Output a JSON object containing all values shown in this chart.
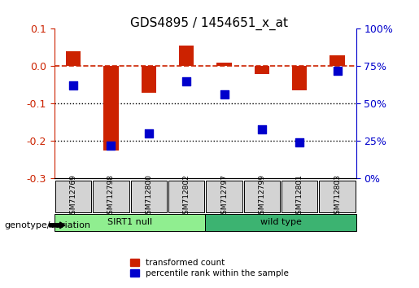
{
  "title": "GDS4895 / 1454651_x_at",
  "samples": [
    "GSM712769",
    "GSM712798",
    "GSM712800",
    "GSM712802",
    "GSM712797",
    "GSM712799",
    "GSM712801",
    "GSM712803"
  ],
  "red_bars": [
    0.04,
    -0.225,
    -0.07,
    0.055,
    0.01,
    -0.02,
    -0.065,
    0.03
  ],
  "blue_dots": [
    -0.075,
    -0.175,
    -0.14,
    -0.06,
    -0.09,
    -0.13,
    -0.195,
    -0.015
  ],
  "blue_dots_pct": [
    62,
    22,
    30,
    65,
    56,
    33,
    24,
    72
  ],
  "groups": [
    {
      "label": "SIRT1 null",
      "start": 0,
      "end": 4,
      "color": "#90EE90"
    },
    {
      "label": "wild type",
      "start": 4,
      "end": 8,
      "color": "#32CD32"
    }
  ],
  "ylim_left": [
    -0.3,
    0.1
  ],
  "ylim_right": [
    0,
    100
  ],
  "yticks_left": [
    -0.3,
    -0.2,
    -0.1,
    0.0,
    0.1
  ],
  "yticks_right": [
    0,
    25,
    50,
    75,
    100
  ],
  "ytick_right_labels": [
    "0%",
    "25%",
    "50%",
    "75%",
    "100%"
  ],
  "bar_color": "#CC2200",
  "dot_color": "#0000CC",
  "hline_color": "#CC2200",
  "dotted_line_color": "#000000",
  "dotted_lines": [
    -0.1,
    -0.2
  ],
  "legend_red_label": "transformed count",
  "legend_blue_label": "percentile rank within the sample",
  "genotype_label": "genotype/variation",
  "group_bar_color_1": "#90EE90",
  "group_bar_color_2": "#3CB371",
  "bar_width": 0.4,
  "dot_size": 60,
  "background_color": "#FFFFFF",
  "plot_bg": "#FFFFFF"
}
